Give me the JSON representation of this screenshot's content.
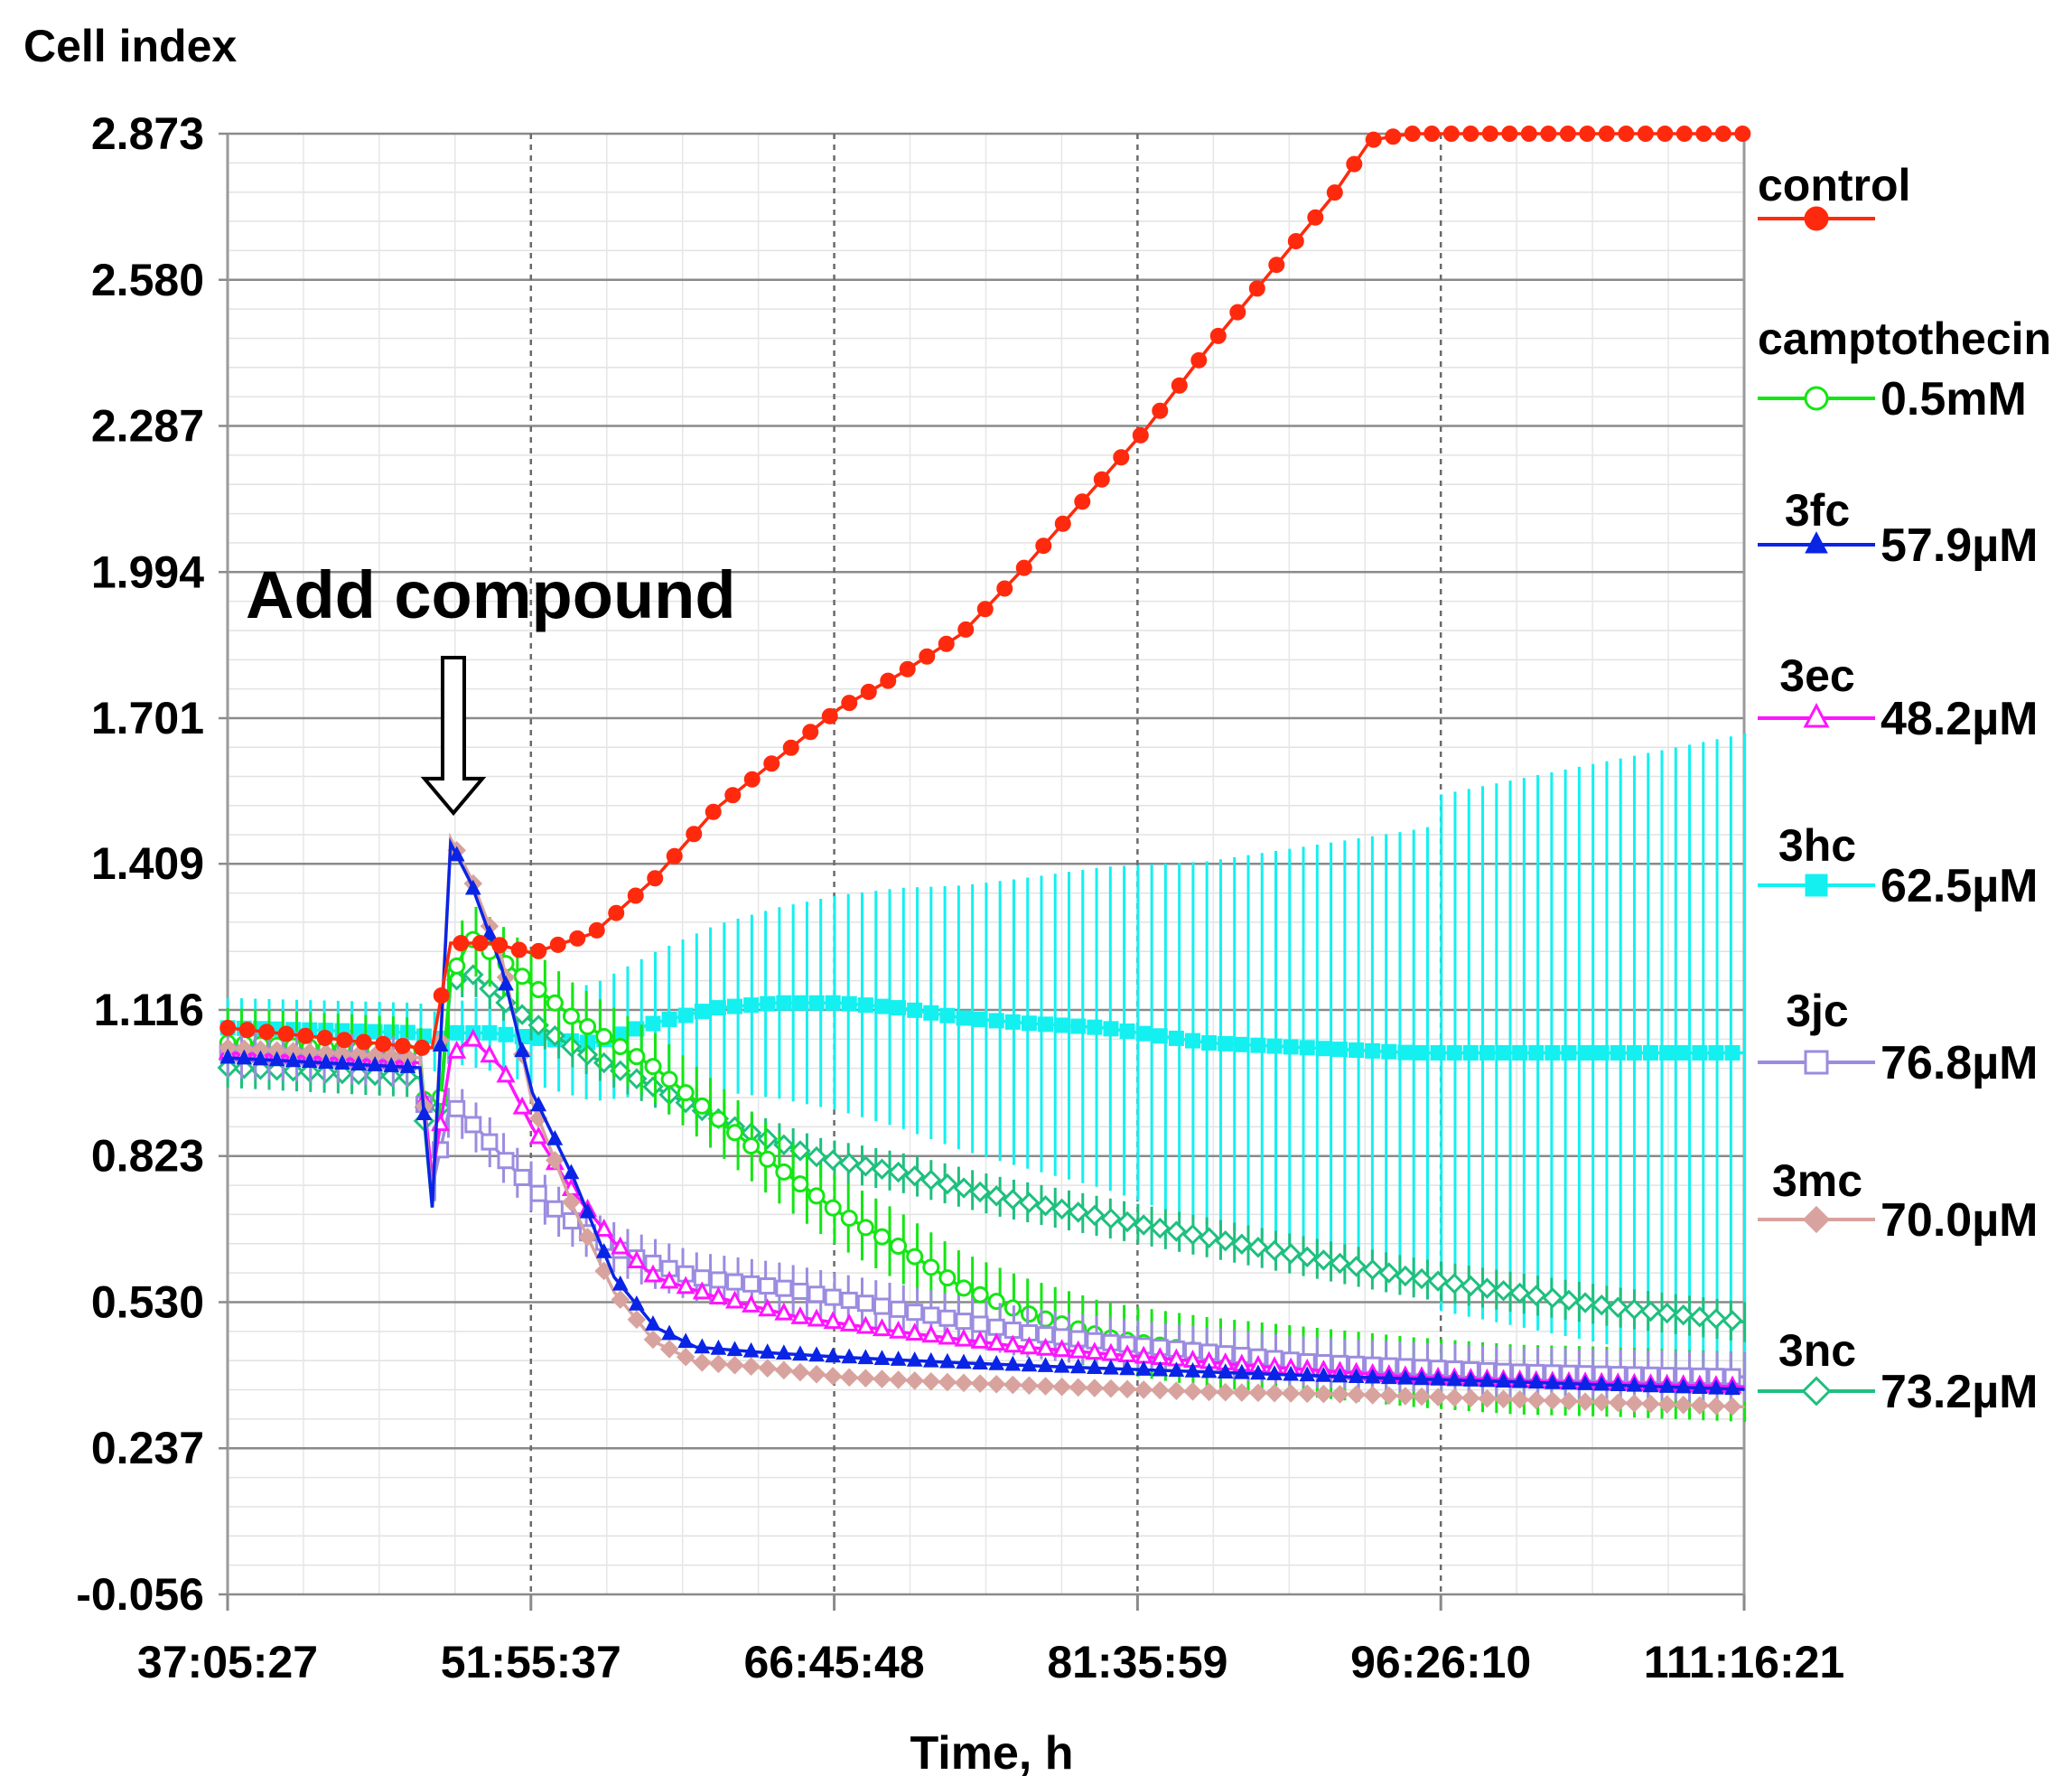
{
  "chart_data": {
    "type": "line",
    "title": "",
    "ylabel": "Cell index",
    "xlabel": "Time, h",
    "ylim": [
      -0.056,
      2.873
    ],
    "xlim": [
      37.091,
      111.273
    ],
    "x_unit": "h",
    "yticks": [
      "2.873",
      "2.580",
      "2.287",
      "1.994",
      "1.701",
      "1.409",
      "1.116",
      "0.823",
      "0.530",
      "0.237",
      "-0.056"
    ],
    "ytick_values": [
      2.873,
      2.58,
      2.287,
      1.994,
      1.701,
      1.409,
      1.116,
      0.823,
      0.53,
      0.237,
      -0.056
    ],
    "xticks": [
      "37:05:27",
      "51:55:37",
      "66:45:48",
      "81:35:59",
      "96:26:10",
      "111:16:21"
    ],
    "xtick_values": [
      37.091,
      51.927,
      66.763,
      81.6,
      96.436,
      111.273
    ],
    "grid": true,
    "legend_position": "right",
    "annotation": {
      "text": "Add compound",
      "x": 48.0,
      "y": 1.45
    },
    "series": [
      {
        "name": "control",
        "legend_title": "control",
        "legend_value": "",
        "color": "#ff2a0d",
        "marker": "filled-circle",
        "errorbars": false,
        "points": [
          [
            37.1,
            1.08
          ],
          [
            46.5,
            1.04
          ],
          [
            47.1,
            1.04
          ],
          [
            48.0,
            1.25
          ],
          [
            50.0,
            1.25
          ],
          [
            52.0,
            1.23
          ],
          [
            55.0,
            1.27
          ],
          [
            58.0,
            1.38
          ],
          [
            61.0,
            1.52
          ],
          [
            64.0,
            1.62
          ],
          [
            67.0,
            1.72
          ],
          [
            70.0,
            1.79
          ],
          [
            73.0,
            1.87
          ],
          [
            76.0,
            2.0
          ],
          [
            79.0,
            2.14
          ],
          [
            82.0,
            2.28
          ],
          [
            85.0,
            2.44
          ],
          [
            88.0,
            2.59
          ],
          [
            91.0,
            2.74
          ],
          [
            93.0,
            2.86
          ],
          [
            95.0,
            2.873
          ],
          [
            111.3,
            2.873
          ]
        ]
      },
      {
        "name": "camptothecin",
        "legend_title": "camptothecin",
        "legend_value": "0.5mM",
        "color": "#14e614",
        "marker": "open-circle",
        "errorbars": true,
        "error": 0.07,
        "points": [
          [
            37.1,
            1.05
          ],
          [
            46.5,
            1.03
          ],
          [
            47.1,
            0.75
          ],
          [
            48.0,
            1.18
          ],
          [
            49.0,
            1.26
          ],
          [
            51.0,
            1.2
          ],
          [
            54.0,
            1.1
          ],
          [
            58.0,
            1.0
          ],
          [
            61.0,
            0.9
          ],
          [
            64.0,
            0.8
          ],
          [
            67.0,
            0.71
          ],
          [
            70.0,
            0.64
          ],
          [
            73.0,
            0.56
          ],
          [
            76.0,
            0.51
          ],
          [
            80.0,
            0.46
          ],
          [
            85.0,
            0.43
          ],
          [
            90.0,
            0.41
          ],
          [
            95.0,
            0.39
          ],
          [
            100.0,
            0.375
          ],
          [
            105.0,
            0.37
          ],
          [
            111.3,
            0.36
          ]
        ]
      },
      {
        "name": "3fc",
        "legend_title": "3fc",
        "legend_value": "57.9µM",
        "color": "#0a24e6",
        "marker": "filled-triangle",
        "errorbars": false,
        "points": [
          [
            37.1,
            1.02
          ],
          [
            46.5,
            1.0
          ],
          [
            47.1,
            0.72
          ],
          [
            48.0,
            1.45
          ],
          [
            49.0,
            1.37
          ],
          [
            50.5,
            1.2
          ],
          [
            52.0,
            0.95
          ],
          [
            54.0,
            0.78
          ],
          [
            56.0,
            0.58
          ],
          [
            58.0,
            0.48
          ],
          [
            60.0,
            0.44
          ],
          [
            63.0,
            0.43
          ],
          [
            67.0,
            0.42
          ],
          [
            72.0,
            0.41
          ],
          [
            78.0,
            0.4
          ],
          [
            85.0,
            0.39
          ],
          [
            92.0,
            0.38
          ],
          [
            100.0,
            0.37
          ],
          [
            111.3,
            0.355
          ]
        ]
      },
      {
        "name": "3ec",
        "legend_title": "3ec",
        "legend_value": "48.2µM",
        "color": "#ff14ff",
        "marker": "open-triangle",
        "errorbars": false,
        "points": [
          [
            37.1,
            1.03
          ],
          [
            46.5,
            1.01
          ],
          [
            47.1,
            0.78
          ],
          [
            48.0,
            1.02
          ],
          [
            49.0,
            1.06
          ],
          [
            50.5,
            1.0
          ],
          [
            52.0,
            0.88
          ],
          [
            54.0,
            0.75
          ],
          [
            56.0,
            0.65
          ],
          [
            58.0,
            0.58
          ],
          [
            61.0,
            0.54
          ],
          [
            65.0,
            0.5
          ],
          [
            70.0,
            0.47
          ],
          [
            76.0,
            0.44
          ],
          [
            82.0,
            0.42
          ],
          [
            88.0,
            0.4
          ],
          [
            95.0,
            0.38
          ],
          [
            102.0,
            0.37
          ],
          [
            111.3,
            0.36
          ]
        ]
      },
      {
        "name": "3hc",
        "legend_title": "3hc",
        "legend_value": "62.5µM",
        "color": "#14f0f0",
        "marker": "filled-square",
        "errorbars": true,
        "error_growing": true,
        "points": [
          [
            37.1,
            1.08
          ],
          [
            46.5,
            1.07
          ],
          [
            47.1,
            1.05
          ],
          [
            48.0,
            1.07
          ],
          [
            50.0,
            1.07
          ],
          [
            52.0,
            1.06
          ],
          [
            55.0,
            1.05
          ],
          [
            58.0,
            1.09
          ],
          [
            61.0,
            1.12
          ],
          [
            64.0,
            1.13
          ],
          [
            67.0,
            1.13
          ],
          [
            70.0,
            1.12
          ],
          [
            73.0,
            1.1
          ],
          [
            76.0,
            1.09
          ],
          [
            80.0,
            1.08
          ],
          [
            85.0,
            1.05
          ],
          [
            90.0,
            1.04
          ],
          [
            95.0,
            1.03
          ],
          [
            100.0,
            1.03
          ],
          [
            105.0,
            1.03
          ],
          [
            111.3,
            1.03
          ]
        ]
      },
      {
        "name": "3jc",
        "legend_title": "3jc",
        "legend_value": "76.8µM",
        "color": "#9c8ce0",
        "marker": "open-square",
        "errorbars": true,
        "error": 0.05,
        "points": [
          [
            37.1,
            1.03
          ],
          [
            46.5,
            1.01
          ],
          [
            47.1,
            0.76
          ],
          [
            48.0,
            0.93
          ],
          [
            49.5,
            0.87
          ],
          [
            51.0,
            0.8
          ],
          [
            53.0,
            0.72
          ],
          [
            55.0,
            0.66
          ],
          [
            57.0,
            0.62
          ],
          [
            60.0,
            0.58
          ],
          [
            64.0,
            0.56
          ],
          [
            68.0,
            0.53
          ],
          [
            72.0,
            0.5
          ],
          [
            76.0,
            0.47
          ],
          [
            80.0,
            0.45
          ],
          [
            85.0,
            0.43
          ],
          [
            90.0,
            0.41
          ],
          [
            95.0,
            0.4
          ],
          [
            100.0,
            0.39
          ],
          [
            105.0,
            0.385
          ],
          [
            111.3,
            0.38
          ]
        ]
      },
      {
        "name": "3mc",
        "legend_title": "3mc",
        "legend_value": "70.0µM",
        "color": "#d8a39e",
        "marker": "filled-diamond",
        "errorbars": false,
        "points": [
          [
            37.1,
            1.04
          ],
          [
            46.5,
            1.02
          ],
          [
            47.1,
            0.73
          ],
          [
            48.0,
            1.46
          ],
          [
            49.0,
            1.38
          ],
          [
            50.5,
            1.22
          ],
          [
            52.0,
            0.93
          ],
          [
            54.0,
            0.72
          ],
          [
            56.0,
            0.55
          ],
          [
            58.0,
            0.45
          ],
          [
            60.0,
            0.41
          ],
          [
            63.0,
            0.4
          ],
          [
            67.0,
            0.38
          ],
          [
            72.0,
            0.37
          ],
          [
            78.0,
            0.36
          ],
          [
            85.0,
            0.35
          ],
          [
            92.0,
            0.345
          ],
          [
            100.0,
            0.335
          ],
          [
            111.3,
            0.32
          ]
        ]
      },
      {
        "name": "3nc",
        "legend_title": "3nc",
        "legend_value": "73.2µM",
        "color": "#1ec07e",
        "marker": "open-diamond",
        "errorbars": true,
        "error": 0.04,
        "points": [
          [
            37.1,
            1.0
          ],
          [
            46.5,
            0.98
          ],
          [
            47.1,
            0.72
          ],
          [
            48.0,
            1.17
          ],
          [
            49.0,
            1.19
          ],
          [
            51.0,
            1.12
          ],
          [
            54.0,
            1.04
          ],
          [
            58.0,
            0.96
          ],
          [
            62.0,
            0.88
          ],
          [
            66.0,
            0.82
          ],
          [
            70.0,
            0.79
          ],
          [
            75.0,
            0.74
          ],
          [
            80.0,
            0.7
          ],
          [
            85.0,
            0.66
          ],
          [
            90.0,
            0.62
          ],
          [
            95.0,
            0.58
          ],
          [
            100.0,
            0.55
          ],
          [
            105.0,
            0.52
          ],
          [
            111.3,
            0.49
          ]
        ]
      }
    ]
  }
}
